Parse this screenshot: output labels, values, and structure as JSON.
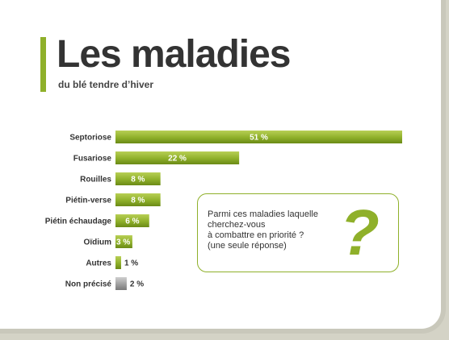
{
  "colors": {
    "accent": "#8fb02a",
    "bar_green": "#8fb02a",
    "bar_gray": "#a0a0a0"
  },
  "header": {
    "title": "Les maladies",
    "subtitle": "du blé tendre d’hiver"
  },
  "question": {
    "text": "Parmi ces maladies laquelle\ncherchez-vous\nà combattre en priorité ?\n(une seule réponse)",
    "icon": "question-mark-icon",
    "icon_glyph": "?"
  },
  "chart_data": {
    "type": "bar",
    "orientation": "horizontal",
    "categories": [
      "Septoriose",
      "Fusariose",
      "Rouilles",
      "Piétin-verse",
      "Piétin échaudage",
      "Oïdium",
      "Autres",
      "Non précisé"
    ],
    "values": [
      51,
      22,
      8,
      8,
      6,
      3,
      1,
      2
    ],
    "value_labels": [
      "51 %",
      "22 %",
      "8 %",
      "8 %",
      "6 %",
      "3 %",
      "1 %",
      "2 %"
    ],
    "bar_colors": [
      "#8fb02a",
      "#8fb02a",
      "#8fb02a",
      "#8fb02a",
      "#8fb02a",
      "#8fb02a",
      "#8fb02a",
      "#a0a0a0"
    ],
    "title": "Les maladies",
    "subtitle": "du blé tendre d’hiver",
    "unit": "%"
  }
}
